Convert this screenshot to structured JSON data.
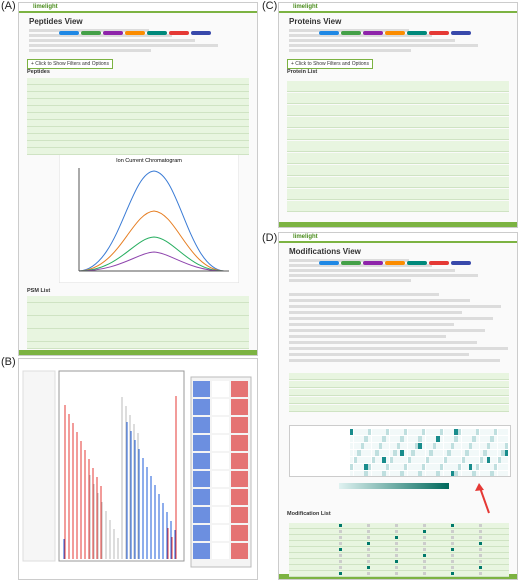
{
  "app": "limelight",
  "panels": [
    {
      "label": "(A)",
      "title": "Peptides View",
      "button": "+ Click to Show Filters and Options",
      "sections": [
        "Peptides",
        "Ion Current Chromatogram",
        "PSM List"
      ]
    },
    {
      "label": "(B)"
    },
    {
      "label": "(C)",
      "title": "Proteins View",
      "button": "+ Click to Show Filters and Options",
      "sections": [
        "Protein List"
      ]
    },
    {
      "label": "(D)",
      "title": "Modifications View",
      "sections": [
        "Modification List"
      ]
    }
  ]
}
